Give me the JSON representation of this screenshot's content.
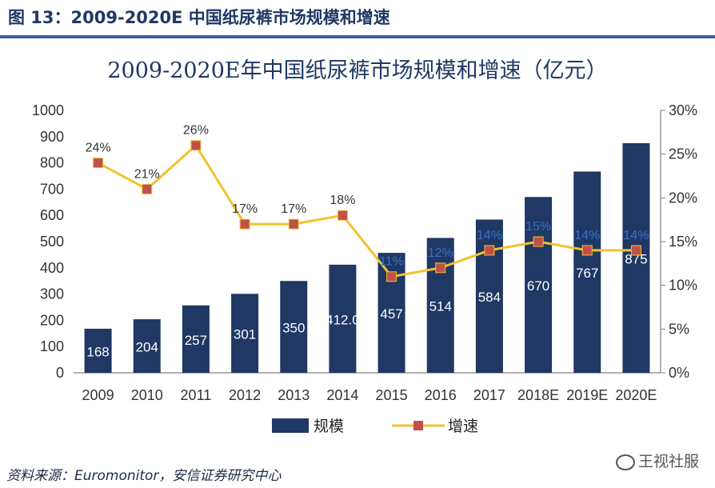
{
  "figure_title": "图 13：2009-2020E 中国纸尿裤市场规模和增速",
  "source": "资料来源：Euromonitor，安信证券研究中心",
  "watermark": "王视社服",
  "colors": {
    "bar": "#1f3864",
    "line": "#f2c12e",
    "marker": "#c0504d",
    "title": "#1f3864",
    "axis": "#7f7f7f"
  },
  "chart_data": {
    "type": "bar",
    "title": "2009-2020E年中国纸尿裤市场规模和增速（亿元）",
    "categories": [
      "2009",
      "2010",
      "2011",
      "2012",
      "2013",
      "2014",
      "2015",
      "2016",
      "2017",
      "2018E",
      "2019E",
      "2020E"
    ],
    "series": [
      {
        "name": "规模",
        "type": "bar",
        "axis": "left",
        "values": [
          168,
          204,
          257,
          301,
          350,
          412,
          457,
          514,
          584,
          670,
          767,
          875
        ],
        "value_labels": [
          "168",
          "204",
          "257",
          "301",
          "350",
          "412.0",
          "457",
          "514",
          "584",
          "670",
          "767",
          "875"
        ]
      },
      {
        "name": "增速",
        "type": "line",
        "axis": "right",
        "values": [
          24,
          21,
          26,
          17,
          17,
          18,
          11,
          12,
          14,
          15,
          14,
          14
        ],
        "value_labels": [
          "24%",
          "21%",
          "26%",
          "17%",
          "17%",
          "18%",
          "11%",
          "12%",
          "14%",
          "15%",
          "14%",
          "14%"
        ]
      }
    ],
    "ylim_left": [
      0,
      1000
    ],
    "yticks_left": [
      "0",
      "100",
      "200",
      "300",
      "400",
      "500",
      "600",
      "700",
      "800",
      "900",
      "1000"
    ],
    "ylim_right": [
      0,
      30
    ],
    "yticks_right": [
      "0%",
      "5%",
      "10%",
      "15%",
      "20%",
      "25%",
      "30%"
    ],
    "grid": false,
    "legend_position": "bottom-center"
  }
}
